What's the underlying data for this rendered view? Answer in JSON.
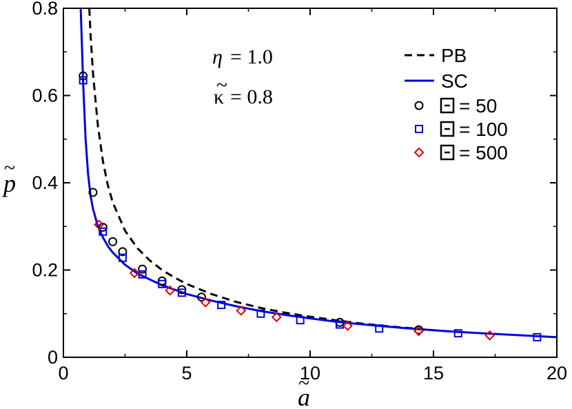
{
  "chart_data": {
    "type": "scatter",
    "xlabel": "a",
    "ylabel": "p",
    "xlim": [
      0,
      20
    ],
    "ylim": [
      0,
      0.8
    ],
    "xticks": [
      "0",
      "5",
      "10",
      "15",
      "20"
    ],
    "yticks": [
      "0",
      "0.2",
      "0.4",
      "0.6",
      "0.8"
    ],
    "annotations": [
      {
        "symbol": "η",
        "text": "= 1.0"
      },
      {
        "symbol": "κ",
        "text": "= 0.8"
      }
    ],
    "legend_position": "top-right",
    "colors": {
      "pb": "#000000",
      "sc": "#0000dd",
      "xi50": "#000000",
      "xi100": "#0000dd",
      "xi500": "#dd0000"
    },
    "series": [
      {
        "name": "PB",
        "style": "dashed-line",
        "x": [
          1.05,
          1.1,
          1.2,
          1.4,
          1.6,
          1.8,
          2.0,
          2.5,
          3.0,
          3.5,
          4.0,
          4.5,
          5.0,
          6.0,
          7.0,
          8.0,
          9.0,
          10.0,
          11.0,
          12.0,
          13.0,
          14.0,
          15.0,
          16.0
        ],
        "y": [
          0.8,
          0.74,
          0.65,
          0.53,
          0.45,
          0.395,
          0.355,
          0.29,
          0.25,
          0.222,
          0.2,
          0.183,
          0.168,
          0.145,
          0.127,
          0.113,
          0.102,
          0.093,
          0.085,
          0.078,
          0.072,
          0.067,
          0.062,
          0.058
        ]
      },
      {
        "name": "SC",
        "style": "solid-line",
        "x": [
          0.7,
          0.75,
          0.8,
          0.9,
          1.0,
          1.1,
          1.2,
          1.4,
          1.6,
          1.8,
          2.0,
          2.5,
          3.0,
          4.0,
          5.0,
          6.0,
          7.0,
          8.0,
          9.0,
          10.0,
          11.0,
          12.0,
          13.0,
          14.0,
          15.0,
          16.0,
          17.0,
          18.0,
          19.0,
          20.0
        ],
        "y": [
          0.8,
          0.72,
          0.63,
          0.5,
          0.42,
          0.37,
          0.34,
          0.3,
          0.275,
          0.255,
          0.24,
          0.212,
          0.192,
          0.165,
          0.145,
          0.13,
          0.117,
          0.106,
          0.097,
          0.089,
          0.082,
          0.076,
          0.071,
          0.066,
          0.062,
          0.058,
          0.055,
          0.052,
          0.049,
          0.046
        ]
      },
      {
        "name": "= 50",
        "marker": "circle",
        "x": [
          0.8,
          1.2,
          1.6,
          2.0,
          2.4,
          3.2,
          4.0,
          4.8,
          5.6,
          11.2,
          14.4
        ],
        "y": [
          0.645,
          0.378,
          0.298,
          0.265,
          0.242,
          0.202,
          0.175,
          0.155,
          0.138,
          0.08,
          0.063
        ]
      },
      {
        "name": "= 100",
        "marker": "square",
        "x": [
          0.8,
          1.6,
          2.4,
          3.2,
          4.0,
          4.8,
          6.4,
          8.0,
          9.6,
          11.2,
          12.8,
          16.0,
          19.2
        ],
        "y": [
          0.635,
          0.288,
          0.228,
          0.19,
          0.168,
          0.148,
          0.12,
          0.1,
          0.085,
          0.075,
          0.066,
          0.055,
          0.046
        ]
      },
      {
        "name": "= 500",
        "marker": "diamond",
        "x": [
          1.44,
          2.88,
          4.32,
          5.76,
          7.2,
          8.64,
          11.52,
          14.4,
          17.28
        ],
        "y": [
          0.304,
          0.193,
          0.153,
          0.126,
          0.107,
          0.092,
          0.072,
          0.06,
          0.05
        ]
      }
    ]
  }
}
